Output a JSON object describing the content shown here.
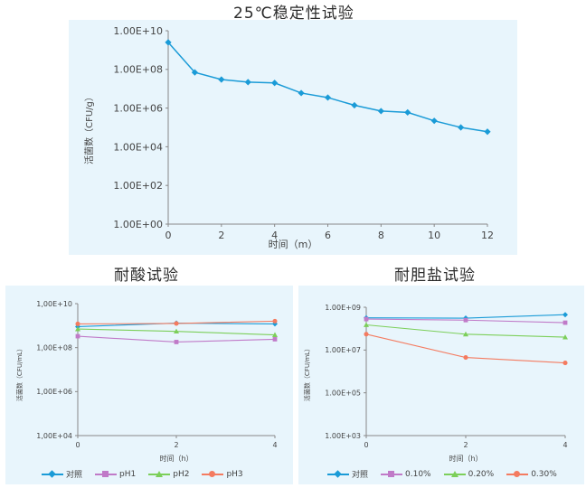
{
  "titles": {
    "main": "25℃稳定性试验",
    "acid": "耐酸试验",
    "bile": "耐胆盐试验"
  },
  "colors": {
    "panel_bg": "#e8f5fc",
    "blue": "#1a9bd7",
    "purple": "#c07ac8",
    "green": "#7ccf5a",
    "red": "#f47b60"
  },
  "chart_data": [
    {
      "id": "main",
      "type": "line",
      "title": "25℃稳定性试验",
      "xlabel": "时间（m）",
      "ylabel": "活菌数（CFU/g）",
      "y_scale": "log",
      "xlim": [
        0,
        12
      ],
      "ylim": [
        1,
        10000000000.0
      ],
      "x_ticks": [
        "0",
        "2",
        "4",
        "6",
        "8",
        "10",
        "12"
      ],
      "y_ticks": [
        "1.00E+00",
        "1.00E+02",
        "1.00E+04",
        "1.00E+06",
        "1.00E+08",
        "1.00E+10"
      ],
      "x": [
        0,
        1,
        2,
        3,
        4,
        5,
        6,
        7,
        8,
        9,
        10,
        11,
        12
      ],
      "series": [
        {
          "values": [
            2500000000.0,
            70000000.0,
            30000000.0,
            22000000.0,
            20000000.0,
            6000000.0,
            3500000.0,
            1400000.0,
            700000.0,
            600000.0,
            220000.0,
            100000.0,
            60000.0
          ],
          "color": "#1a9bd7",
          "marker": "diamond"
        }
      ]
    },
    {
      "id": "acid",
      "type": "line",
      "title": "耐酸试验",
      "xlabel": "时间（h）",
      "ylabel": "活菌数（CFU/mL）",
      "y_scale": "log",
      "xlim": [
        0,
        4
      ],
      "ylim": [
        10000.0,
        10000000000.0
      ],
      "x_ticks": [
        "0",
        "2",
        "4"
      ],
      "y_ticks": [
        "1,00E+04",
        "1,00E+06",
        "1,00E+08",
        "1,00E+10"
      ],
      "x": [
        0,
        2,
        4
      ],
      "series": [
        {
          "name": "对照",
          "values": [
            900000000.0,
            1300000000.0,
            1200000000.0
          ],
          "color": "#1a9bd7",
          "marker": "diamond"
        },
        {
          "name": "pH1",
          "values": [
            330000000.0,
            180000000.0,
            240000000.0
          ],
          "color": "#c07ac8",
          "marker": "square"
        },
        {
          "name": "pH2",
          "values": [
            700000000.0,
            550000000.0,
            380000000.0
          ],
          "color": "#7ccf5a",
          "marker": "triangle"
        },
        {
          "name": "pH3",
          "values": [
            1200000000.0,
            1250000000.0,
            1600000000.0
          ],
          "color": "#f47b60",
          "marker": "circle"
        }
      ],
      "legend": "bottom"
    },
    {
      "id": "bile",
      "type": "line",
      "title": "耐胆盐试验",
      "xlabel": "时间（h）",
      "ylabel": "活菌数（CFU/mL）",
      "y_scale": "log",
      "xlim": [
        0,
        4.2
      ],
      "ylim": [
        1000.0,
        1000000000.0
      ],
      "x_ticks": [
        "0",
        "2",
        "4"
      ],
      "y_ticks": [
        "1.00E+03",
        "1.00E+05",
        "1.00E+07",
        "1.00E+09"
      ],
      "x": [
        0,
        2.1,
        4.2
      ],
      "series": [
        {
          "name": "对照",
          "values": [
            320000000.0,
            310000000.0,
            450000000.0
          ],
          "color": "#1a9bd7",
          "marker": "diamond"
        },
        {
          "name": "0.10%",
          "values": [
            280000000.0,
            250000000.0,
            190000000.0
          ],
          "color": "#c07ac8",
          "marker": "square"
        },
        {
          "name": "0.20%",
          "values": [
            150000000.0,
            55000000.0,
            40000000.0
          ],
          "color": "#7ccf5a",
          "marker": "triangle"
        },
        {
          "name": "0.30%",
          "values": [
            55000000.0,
            4500000.0,
            2500000.0
          ],
          "color": "#f47b60",
          "marker": "circle"
        }
      ],
      "legend": "bottom"
    }
  ]
}
